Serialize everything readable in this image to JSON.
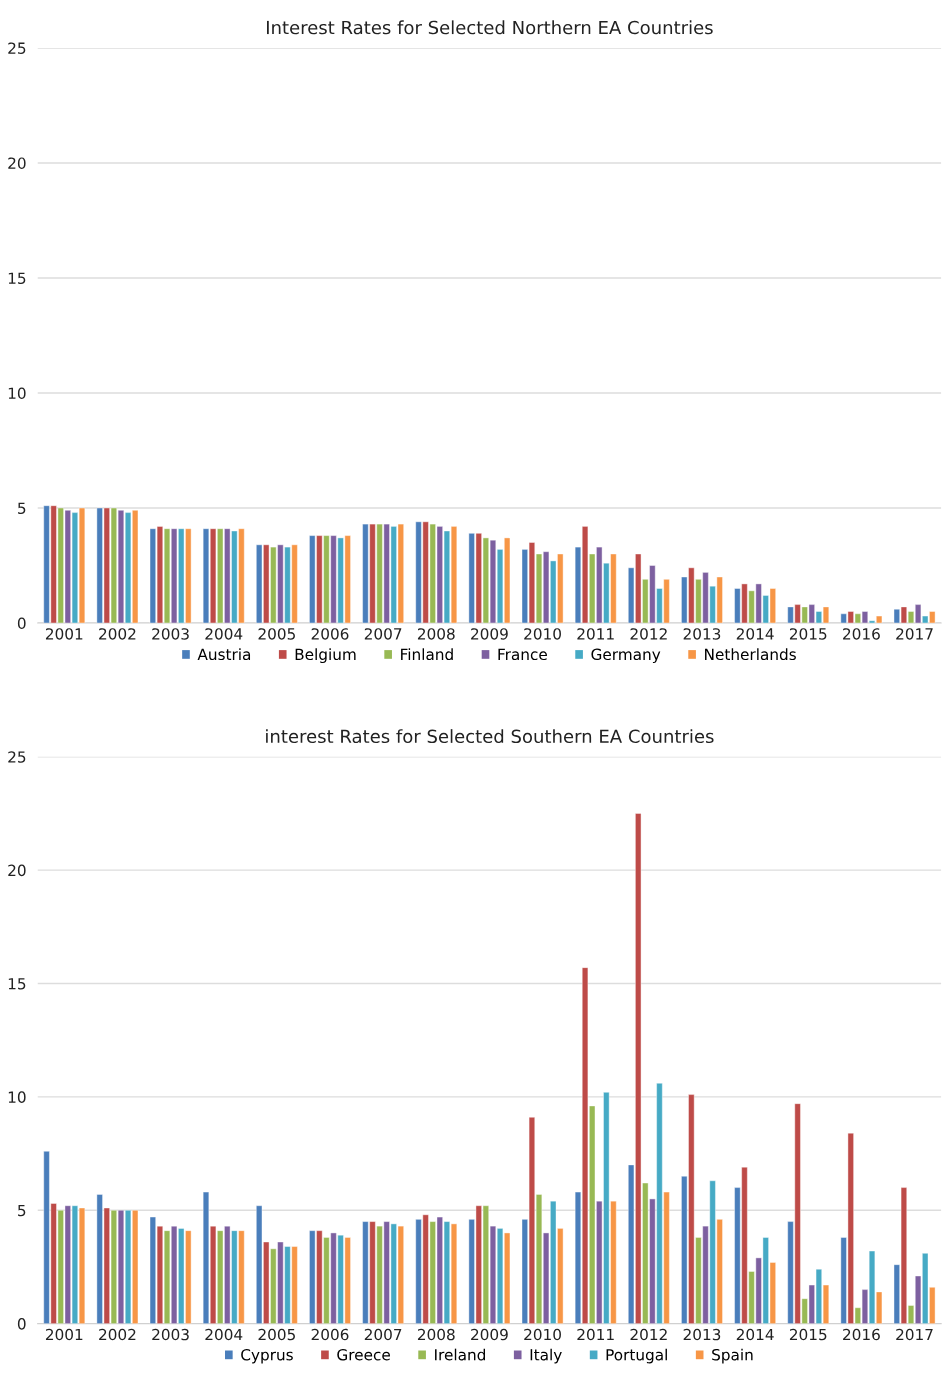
{
  "chart_data": [
    {
      "type": "bar",
      "title": "Interest Rates for Selected Northern EA Countries",
      "categories": [
        "2001",
        "2002",
        "2003",
        "2004",
        "2005",
        "2006",
        "2007",
        "2008",
        "2009",
        "2010",
        "2011",
        "2012",
        "2013",
        "2014",
        "2015",
        "2016",
        "2017"
      ],
      "series": [
        {
          "name": "Austria",
          "color": "#4a7ebb",
          "values": [
            5.1,
            5.0,
            4.1,
            4.1,
            3.4,
            3.8,
            4.3,
            4.4,
            3.9,
            3.2,
            3.3,
            2.4,
            2.0,
            1.5,
            0.7,
            0.4,
            0.6
          ]
        },
        {
          "name": "Belgium",
          "color": "#be4b48",
          "values": [
            5.1,
            5.0,
            4.2,
            4.1,
            3.4,
            3.8,
            4.3,
            4.4,
            3.9,
            3.5,
            4.2,
            3.0,
            2.4,
            1.7,
            0.8,
            0.5,
            0.7
          ]
        },
        {
          "name": "Finland",
          "color": "#98b954",
          "values": [
            5.0,
            5.0,
            4.1,
            4.1,
            3.3,
            3.8,
            4.3,
            4.3,
            3.7,
            3.0,
            3.0,
            1.9,
            1.9,
            1.4,
            0.7,
            0.4,
            0.5
          ]
        },
        {
          "name": "France",
          "color": "#7d60a0",
          "values": [
            4.9,
            4.9,
            4.1,
            4.1,
            3.4,
            3.8,
            4.3,
            4.2,
            3.6,
            3.1,
            3.3,
            2.5,
            2.2,
            1.7,
            0.8,
            0.5,
            0.8
          ]
        },
        {
          "name": "Germany",
          "color": "#46aac5",
          "values": [
            4.8,
            4.8,
            4.1,
            4.0,
            3.3,
            3.7,
            4.2,
            4.0,
            3.2,
            2.7,
            2.6,
            1.5,
            1.6,
            1.2,
            0.5,
            0.1,
            0.3
          ]
        },
        {
          "name": "Netherlands",
          "color": "#f79646",
          "values": [
            5.0,
            4.9,
            4.1,
            4.1,
            3.4,
            3.8,
            4.3,
            4.2,
            3.7,
            3.0,
            3.0,
            1.9,
            2.0,
            1.5,
            0.7,
            0.3,
            0.5
          ]
        }
      ],
      "ylim": [
        0,
        25
      ],
      "yticks": [
        0,
        5,
        10,
        15,
        20,
        25
      ],
      "grid": "y",
      "legend": "bottom"
    },
    {
      "type": "bar",
      "title": "interest Rates for Selected Southern EA Countries",
      "categories": [
        "2001",
        "2002",
        "2003",
        "2004",
        "2005",
        "2006",
        "2007",
        "2008",
        "2009",
        "2010",
        "2011",
        "2012",
        "2013",
        "2014",
        "2015",
        "2016",
        "2017"
      ],
      "series": [
        {
          "name": "Cyprus",
          "color": "#4a7ebb",
          "values": [
            7.6,
            5.7,
            4.7,
            5.8,
            5.2,
            4.1,
            4.5,
            4.6,
            4.6,
            4.6,
            5.8,
            7.0,
            6.5,
            6.0,
            4.5,
            3.8,
            2.6
          ]
        },
        {
          "name": "Greece",
          "color": "#be4b48",
          "values": [
            5.3,
            5.1,
            4.3,
            4.3,
            3.6,
            4.1,
            4.5,
            4.8,
            5.2,
            9.1,
            15.7,
            22.5,
            10.1,
            6.9,
            9.7,
            8.4,
            6.0
          ]
        },
        {
          "name": "Ireland",
          "color": "#98b954",
          "values": [
            5.0,
            5.0,
            4.1,
            4.1,
            3.3,
            3.8,
            4.3,
            4.5,
            5.2,
            5.7,
            9.6,
            6.2,
            3.8,
            2.3,
            1.1,
            0.7,
            0.8
          ]
        },
        {
          "name": "Italy",
          "color": "#7d60a0",
          "values": [
            5.2,
            5.0,
            4.3,
            4.3,
            3.6,
            4.0,
            4.5,
            4.7,
            4.3,
            4.0,
            5.4,
            5.5,
            4.3,
            2.9,
            1.7,
            1.5,
            2.1
          ]
        },
        {
          "name": "Portugal",
          "color": "#46aac5",
          "values": [
            5.2,
            5.0,
            4.2,
            4.1,
            3.4,
            3.9,
            4.4,
            4.5,
            4.2,
            5.4,
            10.2,
            10.6,
            6.3,
            3.8,
            2.4,
            3.2,
            3.1
          ]
        },
        {
          "name": "Spain",
          "color": "#f79646",
          "values": [
            5.1,
            5.0,
            4.1,
            4.1,
            3.4,
            3.8,
            4.3,
            4.4,
            4.0,
            4.2,
            5.4,
            5.8,
            4.6,
            2.7,
            1.7,
            1.4,
            1.6
          ]
        }
      ],
      "ylim": [
        0,
        25
      ],
      "yticks": [
        0,
        5,
        10,
        15,
        20,
        25
      ],
      "grid": "y",
      "legend": "bottom"
    }
  ]
}
